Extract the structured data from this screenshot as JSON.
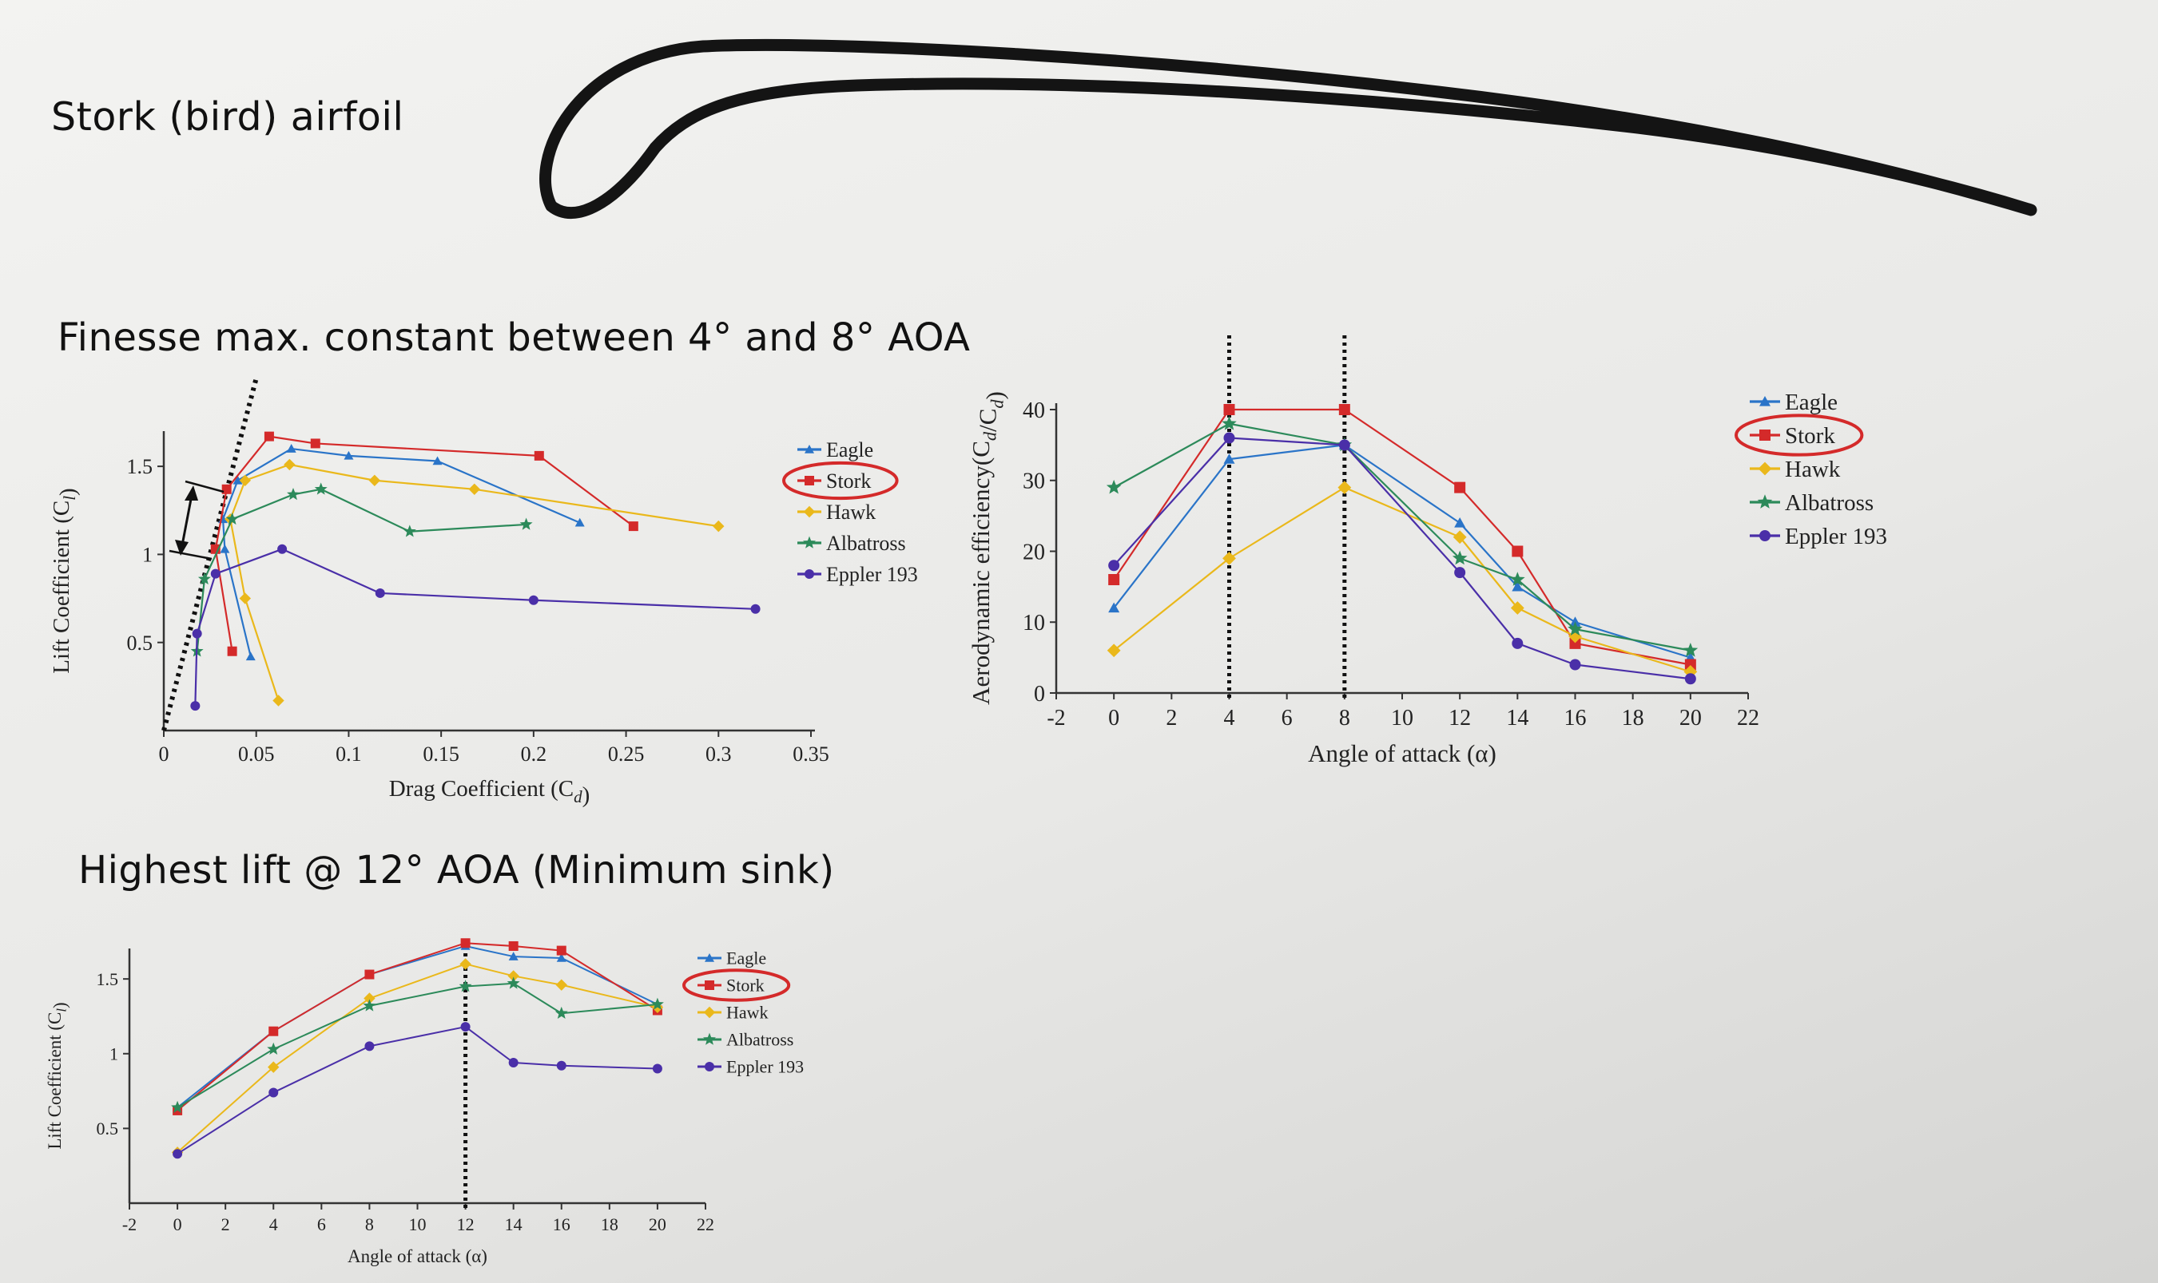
{
  "headings": {
    "airfoil": "Stork (bird) airfoil",
    "finesse": "Finesse max. constant between 4° and 8° AOA",
    "highest_lift": "Highest lift @ 12° AOA (Minimum sink)"
  },
  "colors": {
    "Eagle": "#2a74c8",
    "Stork": "#d42a2a",
    "Hawk": "#eab81b",
    "Albatross": "#2c8a5a",
    "Eppler 193": "#4a2fa8",
    "highlight": "#d42a2a"
  },
  "chart_data": [
    {
      "id": "lift-drag",
      "type": "scatter",
      "xlabel": "Drag Coefficient (C_d)",
      "ylabel": "Lift Coefficient (C_l)",
      "xlim": [
        0,
        0.35
      ],
      "ylim": [
        0,
        1.7
      ],
      "xticks": [
        0,
        0.05,
        0.1,
        0.15,
        0.2,
        0.25,
        0.3,
        0.35
      ],
      "xtick_labels": [
        "0",
        "0.05",
        "0.1",
        "0.15",
        "0.2",
        "0.25",
        "0.3",
        "0.35"
      ],
      "yticks": [
        0.5,
        1,
        1.5
      ],
      "ytick_labels": [
        "0.5",
        "1",
        "1.5"
      ],
      "legend": [
        "Eagle",
        "Stork",
        "Hawk",
        "Albatross",
        "Eppler 193"
      ],
      "legend_highlight": "Stork",
      "series": [
        {
          "name": "Eagle",
          "marker": "triangle",
          "points": [
            [
              0.047,
              0.42
            ],
            [
              0.033,
              1.03
            ],
            [
              0.032,
              1.2
            ],
            [
              0.04,
              1.42
            ],
            [
              0.069,
              1.6
            ],
            [
              0.1,
              1.56
            ],
            [
              0.148,
              1.53
            ],
            [
              0.225,
              1.18
            ]
          ]
        },
        {
          "name": "Stork",
          "marker": "square",
          "points": [
            [
              0.037,
              0.45
            ],
            [
              0.028,
              1.03
            ],
            [
              0.034,
              1.37
            ],
            [
              0.057,
              1.67
            ],
            [
              0.082,
              1.63
            ],
            [
              0.203,
              1.56
            ],
            [
              0.254,
              1.16
            ]
          ]
        },
        {
          "name": "Hawk",
          "marker": "diamond",
          "points": [
            [
              0.062,
              0.17
            ],
            [
              0.044,
              0.75
            ],
            [
              0.036,
              1.2
            ],
            [
              0.044,
              1.42
            ],
            [
              0.068,
              1.51
            ],
            [
              0.114,
              1.42
            ],
            [
              0.168,
              1.37
            ],
            [
              0.3,
              1.16
            ]
          ]
        },
        {
          "name": "Albatross",
          "marker": "star",
          "points": [
            [
              0.018,
              0.45
            ],
            [
              0.022,
              0.86
            ],
            [
              0.037,
              1.2
            ],
            [
              0.07,
              1.34
            ],
            [
              0.085,
              1.37
            ],
            [
              0.133,
              1.13
            ],
            [
              0.196,
              1.17
            ]
          ]
        },
        {
          "name": "Eppler 193",
          "marker": "dot",
          "points": [
            [
              0.017,
              0.14
            ],
            [
              0.018,
              0.55
            ],
            [
              0.028,
              0.89
            ],
            [
              0.064,
              1.03
            ],
            [
              0.117,
              0.78
            ],
            [
              0.2,
              0.74
            ],
            [
              0.32,
              0.69
            ]
          ]
        }
      ],
      "dotted_line": [
        [
          0.0,
          0.0
        ],
        [
          0.05,
          2.0
        ]
      ]
    },
    {
      "id": "efficiency",
      "type": "line",
      "xlabel": "Angle of attack (α)",
      "ylabel": "Aerodynamic efficiency(C_d/C_d)",
      "xlim": [
        -2,
        22
      ],
      "ylim": [
        0,
        40
      ],
      "xticks": [
        -2,
        0,
        2,
        4,
        6,
        8,
        10,
        12,
        14,
        16,
        18,
        20,
        22
      ],
      "xtick_labels": [
        "-2",
        "0",
        "2",
        "4",
        "6",
        "8",
        "10",
        "12",
        "14",
        "16",
        "18",
        "20",
        "22"
      ],
      "yticks": [
        0,
        10,
        20,
        30,
        40
      ],
      "ytick_labels": [
        "0",
        "10",
        "20",
        "30",
        "40"
      ],
      "vlines": [
        4,
        8
      ],
      "legend": [
        "Eagle",
        "Stork",
        "Hawk",
        "Albatross",
        "Eppler 193"
      ],
      "legend_highlight": "Stork",
      "x": [
        0,
        4,
        8,
        12,
        14,
        16,
        20
      ],
      "series": [
        {
          "name": "Eagle",
          "marker": "triangle",
          "values": [
            12,
            33,
            35,
            24,
            15,
            10,
            5
          ]
        },
        {
          "name": "Stork",
          "marker": "square",
          "values": [
            16,
            40,
            40,
            29,
            20,
            7,
            4
          ]
        },
        {
          "name": "Hawk",
          "marker": "diamond",
          "values": [
            6,
            19,
            29,
            22,
            12,
            8,
            3
          ]
        },
        {
          "name": "Albatross",
          "marker": "star",
          "values": [
            29,
            38,
            35,
            19,
            16,
            9,
            6
          ]
        },
        {
          "name": "Eppler 193",
          "marker": "dot",
          "values": [
            18,
            36,
            35,
            17,
            7,
            4,
            2
          ]
        }
      ]
    },
    {
      "id": "lift-aoa",
      "type": "line",
      "xlabel": "Angle of attack (α)",
      "ylabel": "Lift Coefficient (C_l)",
      "xlim": [
        -2,
        22
      ],
      "ylim": [
        0,
        1.8
      ],
      "xticks": [
        -2,
        0,
        2,
        4,
        6,
        8,
        10,
        12,
        14,
        16,
        18,
        20,
        22
      ],
      "xtick_labels": [
        "-2",
        "0",
        "2",
        "4",
        "6",
        "8",
        "10",
        "12",
        "14",
        "16",
        "18",
        "20",
        "22"
      ],
      "yticks": [
        0.5,
        1,
        1.5
      ],
      "ytick_labels": [
        "0.5",
        "1",
        "1.5"
      ],
      "vlines": [
        12
      ],
      "legend": [
        "Eagle",
        "Stork",
        "Hawk",
        "Albatross",
        "Eppler 193"
      ],
      "legend_highlight": "Stork",
      "x": [
        0,
        4,
        8,
        12,
        14,
        16,
        20
      ],
      "series": [
        {
          "name": "Eagle",
          "marker": "triangle",
          "values": [
            0.64,
            1.15,
            1.53,
            1.72,
            1.65,
            1.64,
            1.33
          ]
        },
        {
          "name": "Stork",
          "marker": "square",
          "values": [
            0.62,
            1.15,
            1.53,
            1.74,
            1.72,
            1.69,
            1.29
          ]
        },
        {
          "name": "Hawk",
          "marker": "diamond",
          "values": [
            0.34,
            0.91,
            1.37,
            1.6,
            1.52,
            1.46,
            1.31
          ]
        },
        {
          "name": "Albatross",
          "marker": "star",
          "values": [
            0.64,
            1.03,
            1.32,
            1.45,
            1.47,
            1.27,
            1.33
          ]
        },
        {
          "name": "Eppler 193",
          "marker": "dot",
          "values": [
            0.33,
            0.74,
            1.05,
            1.18,
            0.94,
            0.92,
            0.9
          ]
        }
      ]
    }
  ]
}
